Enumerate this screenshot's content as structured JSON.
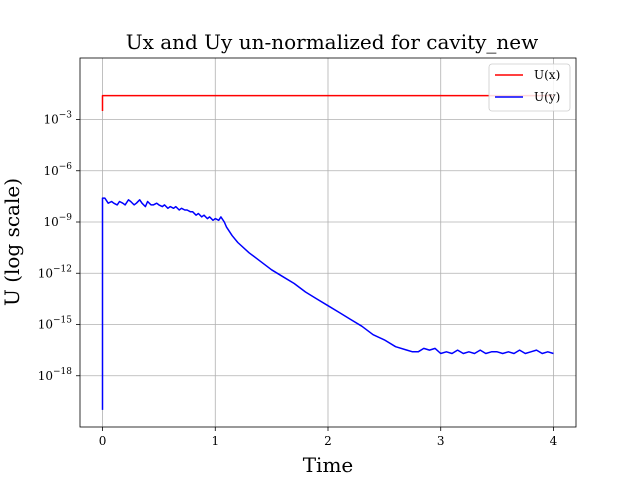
{
  "chart_data": {
    "type": "line",
    "title": "Ux and Uy un-normalized for cavity_new",
    "xlabel": "Time",
    "ylabel": "U (log scale)",
    "xlim": [
      -0.2,
      4.2
    ],
    "ylog": true,
    "ylim_log10": [
      -21,
      0.6
    ],
    "grid": true,
    "legend_position": "top-right",
    "xticks": [
      {
        "value": 0,
        "label": "0"
      },
      {
        "value": 1,
        "label": "1"
      },
      {
        "value": 2,
        "label": "2"
      },
      {
        "value": 3,
        "label": "3"
      },
      {
        "value": 4,
        "label": "4"
      }
    ],
    "yticks": [
      {
        "log10": -3,
        "base": "10",
        "exp": "−3"
      },
      {
        "log10": -6,
        "base": "10",
        "exp": "−6"
      },
      {
        "log10": -9,
        "base": "10",
        "exp": "−9"
      },
      {
        "log10": -12,
        "base": "10",
        "exp": "−12"
      },
      {
        "log10": -15,
        "base": "10",
        "exp": "−15"
      },
      {
        "log10": -18,
        "base": "10",
        "exp": "−18"
      }
    ],
    "series": [
      {
        "name": "U(x)",
        "color": "#ff0000",
        "points": [
          [
            0.0,
            -2.5
          ],
          [
            0.0,
            -1.6
          ],
          [
            0.02,
            -1.6
          ],
          [
            4.0,
            -1.6
          ]
        ]
      },
      {
        "name": "U(y)",
        "color": "#0000ff",
        "points": [
          [
            0.0,
            -20.0
          ],
          [
            0.0,
            -7.6
          ],
          [
            0.02,
            -7.6
          ],
          [
            0.05,
            -7.9
          ],
          [
            0.08,
            -7.8
          ],
          [
            0.1,
            -7.9
          ],
          [
            0.13,
            -8.0
          ],
          [
            0.15,
            -7.8
          ],
          [
            0.18,
            -7.9
          ],
          [
            0.2,
            -8.0
          ],
          [
            0.23,
            -7.7
          ],
          [
            0.25,
            -7.8
          ],
          [
            0.28,
            -8.0
          ],
          [
            0.3,
            -7.9
          ],
          [
            0.33,
            -7.7
          ],
          [
            0.35,
            -7.9
          ],
          [
            0.38,
            -8.1
          ],
          [
            0.4,
            -7.8
          ],
          [
            0.43,
            -8.0
          ],
          [
            0.45,
            -8.0
          ],
          [
            0.48,
            -7.9
          ],
          [
            0.5,
            -8.0
          ],
          [
            0.53,
            -8.1
          ],
          [
            0.55,
            -8.0
          ],
          [
            0.58,
            -8.2
          ],
          [
            0.6,
            -8.1
          ],
          [
            0.63,
            -8.2
          ],
          [
            0.65,
            -8.1
          ],
          [
            0.68,
            -8.3
          ],
          [
            0.7,
            -8.2
          ],
          [
            0.73,
            -8.3
          ],
          [
            0.75,
            -8.3
          ],
          [
            0.78,
            -8.4
          ],
          [
            0.8,
            -8.4
          ],
          [
            0.83,
            -8.6
          ],
          [
            0.85,
            -8.5
          ],
          [
            0.88,
            -8.7
          ],
          [
            0.9,
            -8.6
          ],
          [
            0.93,
            -8.8
          ],
          [
            0.95,
            -8.7
          ],
          [
            0.98,
            -8.9
          ],
          [
            1.0,
            -8.8
          ],
          [
            1.03,
            -8.9
          ],
          [
            1.05,
            -8.7
          ],
          [
            1.08,
            -9.0
          ],
          [
            1.1,
            -9.3
          ],
          [
            1.15,
            -9.8
          ],
          [
            1.2,
            -10.2
          ],
          [
            1.3,
            -10.8
          ],
          [
            1.4,
            -11.3
          ],
          [
            1.5,
            -11.8
          ],
          [
            1.6,
            -12.2
          ],
          [
            1.7,
            -12.6
          ],
          [
            1.8,
            -13.1
          ],
          [
            1.9,
            -13.5
          ],
          [
            2.0,
            -13.9
          ],
          [
            2.1,
            -14.3
          ],
          [
            2.2,
            -14.7
          ],
          [
            2.3,
            -15.1
          ],
          [
            2.4,
            -15.6
          ],
          [
            2.5,
            -15.9
          ],
          [
            2.6,
            -16.3
          ],
          [
            2.7,
            -16.5
          ],
          [
            2.75,
            -16.6
          ],
          [
            2.8,
            -16.6
          ],
          [
            2.85,
            -16.4
          ],
          [
            2.9,
            -16.5
          ],
          [
            2.95,
            -16.4
          ],
          [
            3.0,
            -16.7
          ],
          [
            3.05,
            -16.6
          ],
          [
            3.1,
            -16.7
          ],
          [
            3.15,
            -16.5
          ],
          [
            3.2,
            -16.7
          ],
          [
            3.25,
            -16.6
          ],
          [
            3.3,
            -16.7
          ],
          [
            3.35,
            -16.5
          ],
          [
            3.4,
            -16.7
          ],
          [
            3.45,
            -16.6
          ],
          [
            3.5,
            -16.6
          ],
          [
            3.55,
            -16.7
          ],
          [
            3.6,
            -16.6
          ],
          [
            3.65,
            -16.7
          ],
          [
            3.7,
            -16.5
          ],
          [
            3.75,
            -16.7
          ],
          [
            3.8,
            -16.6
          ],
          [
            3.85,
            -16.5
          ],
          [
            3.9,
            -16.7
          ],
          [
            3.95,
            -16.6
          ],
          [
            4.0,
            -16.7
          ]
        ]
      }
    ]
  }
}
